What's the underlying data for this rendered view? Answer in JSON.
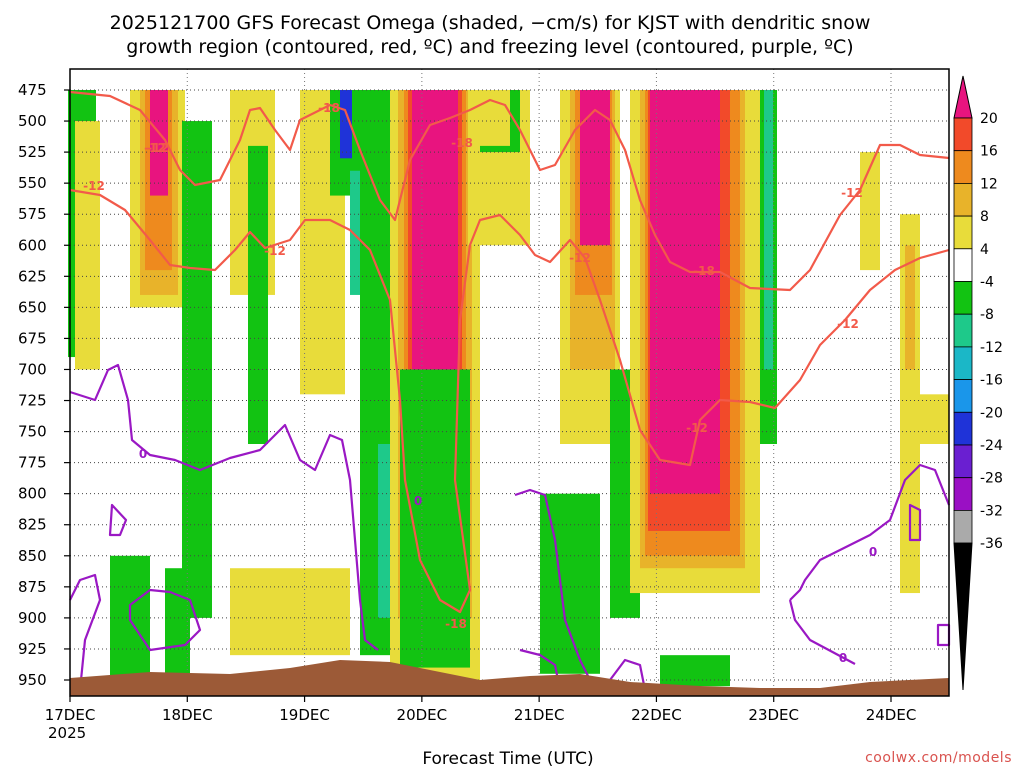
{
  "chart_data": {
    "type": "heatmap",
    "title_line1": "2025121700 GFS Forecast Omega (shaded, −cm/s) for KJST with dendritic snow",
    "title_line2": "growth region (contoured, red, ºC) and freezing level (contoured, purple, ºC)",
    "xlabel": "Forecast Time (UTC)",
    "credit": "coolwx.com/models",
    "x_ticks": [
      "17DEC",
      "18DEC",
      "19DEC",
      "20DEC",
      "21DEC",
      "22DEC",
      "23DEC",
      "24DEC"
    ],
    "x_year": "2025",
    "y_ticks": [
      475,
      500,
      525,
      550,
      575,
      600,
      625,
      650,
      675,
      700,
      725,
      750,
      775,
      800,
      825,
      850,
      875,
      900,
      925,
      950
    ],
    "colorbar_labels": [
      20,
      16,
      12,
      8,
      4,
      -4,
      -8,
      -12,
      -16,
      -20,
      -24,
      -28,
      -32,
      -36
    ],
    "colorbar_colors": [
      "#e8147f",
      "#f24a2a",
      "#ee8a1e",
      "#e8b32a",
      "#e8dc3a",
      "#ffffff",
      "#12c312",
      "#1ec98a",
      "#1bb7c7",
      "#1a96ea",
      "#1f33d8",
      "#6a1fd1",
      "#9a10c4",
      "#aaaaaa",
      "#000000"
    ],
    "colors": {
      "dgz": "#f25a4a",
      "freezing": "#9a18c4",
      "terrain": "#9c5a37"
    },
    "contour_labels": [
      {
        "text": "-18",
        "series": "dgz"
      },
      {
        "text": "-12",
        "series": "dgz"
      },
      {
        "text": "-12",
        "series": "dgz"
      },
      {
        "text": "-12",
        "series": "dgz"
      },
      {
        "text": "-18",
        "series": "dgz"
      },
      {
        "text": "-12",
        "series": "dgz"
      },
      {
        "text": "-18",
        "series": "dgz"
      },
      {
        "text": "-12",
        "series": "dgz"
      },
      {
        "text": "-12",
        "series": "dgz"
      },
      {
        "text": "-18",
        "series": "dgz"
      },
      {
        "text": "-12",
        "series": "dgz"
      },
      {
        "text": "-12",
        "series": "dgz"
      },
      {
        "text": "0",
        "series": "freezing"
      },
      {
        "text": "0",
        "series": "freezing"
      },
      {
        "text": "0",
        "series": "freezing"
      },
      {
        "text": "0",
        "series": "freezing"
      }
    ]
  }
}
